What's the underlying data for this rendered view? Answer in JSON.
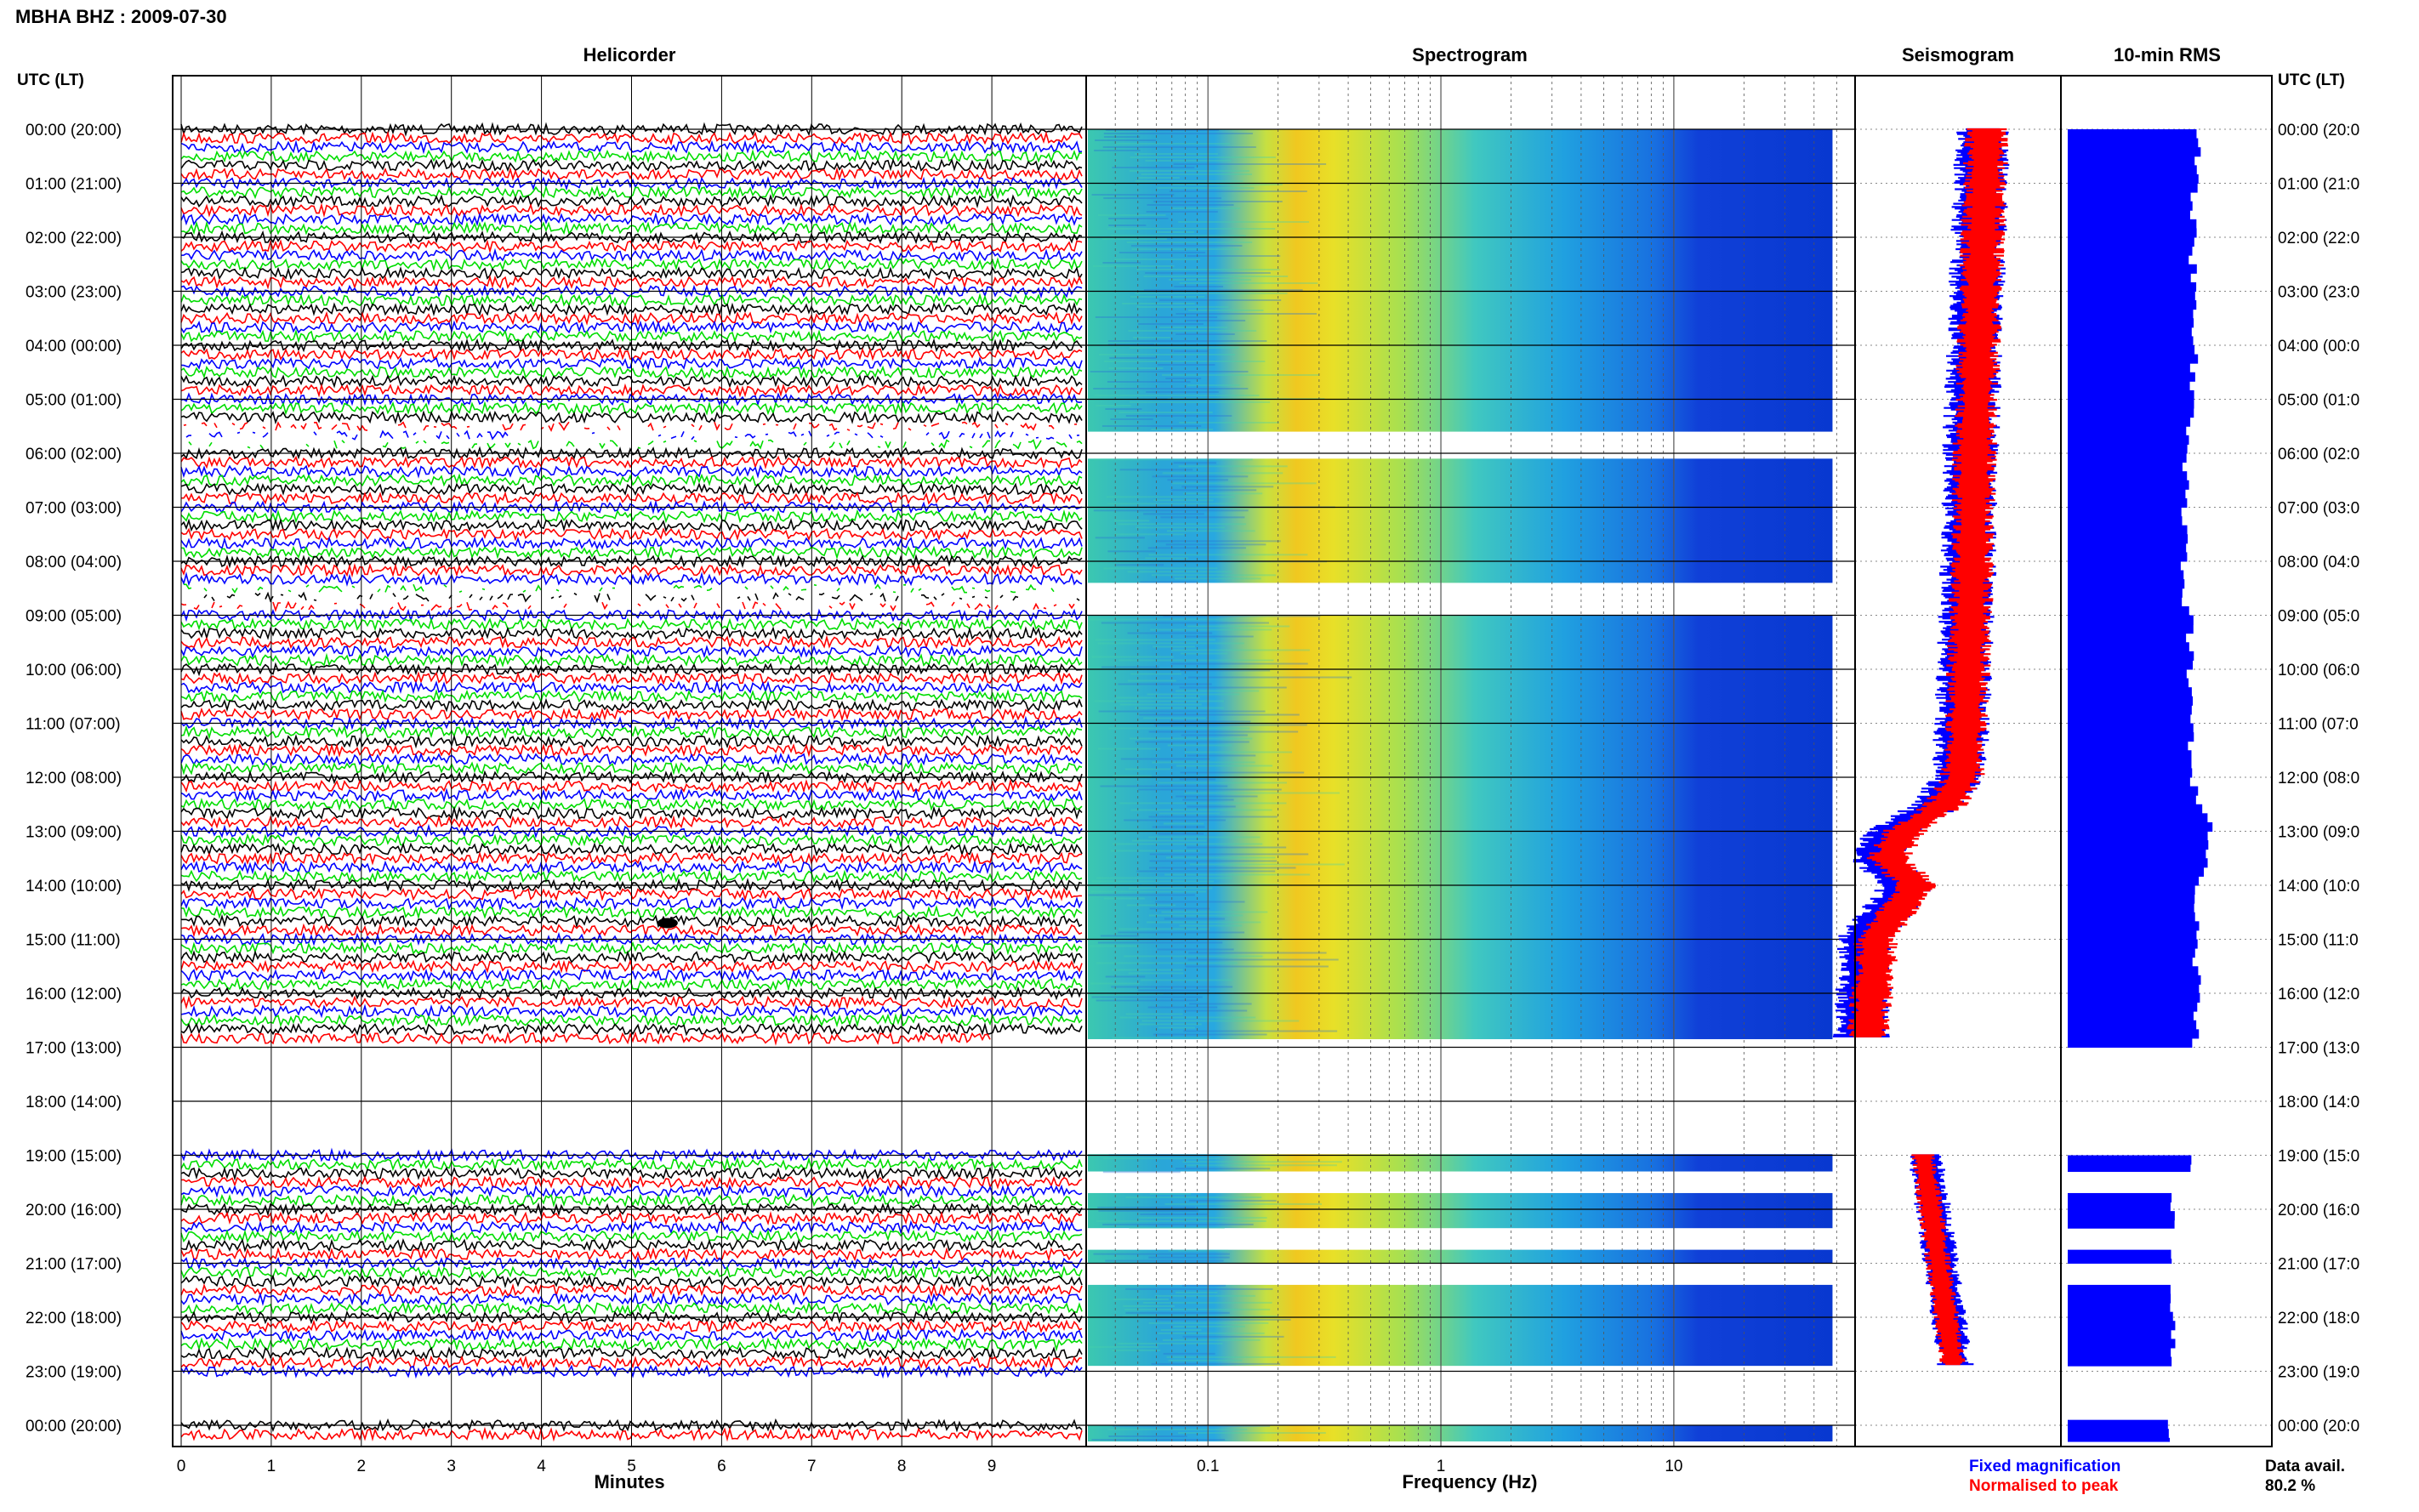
{
  "header": {
    "station_title": "MBHA BHZ : 2009-07-30"
  },
  "colors": {
    "trace_cycle": [
      "#000000",
      "#ff0000",
      "#0000ff",
      "#00dd00"
    ],
    "fixed": "#0000ff",
    "normalised": "#ff0000",
    "rms": "#0000ff"
  },
  "chart_data": [
    {
      "type": "line",
      "title": "Helicorder",
      "xlabel": "Minutes",
      "ylabel": "UTC (LT)",
      "x_ticks": [
        "0",
        "1",
        "2",
        "3",
        "4",
        "5",
        "6",
        "7",
        "8",
        "9"
      ],
      "xlim": [
        0,
        10
      ],
      "y_ticks": [
        "00:00 (20:00)",
        "01:00 (21:00)",
        "02:00 (22:00)",
        "03:00 (23:00)",
        "04:00 (00:00)",
        "05:00 (01:00)",
        "06:00 (02:00)",
        "07:00 (03:00)",
        "08:00 (04:00)",
        "09:00 (05:00)",
        "10:00 (06:00)",
        "11:00 (07:00)",
        "12:00 (08:00)",
        "13:00 (09:00)",
        "14:00 (10:00)",
        "15:00 (11:00)",
        "16:00 (12:00)",
        "17:00 (13:00)",
        "18:00 (14:00)",
        "19:00 (15:00)",
        "20:00 (16:00)",
        "21:00 (17:00)",
        "22:00 (18:00)",
        "23:00 (19:00)",
        "00:00 (20:00)"
      ],
      "right_y_ticks": [
        "00:00 (20:0",
        "01:00 (21:0",
        "02:00 (22:0",
        "03:00 (23:0",
        "04:00 (00:0",
        "05:00 (01:0",
        "06:00 (02:0",
        "07:00 (03:0",
        "08:00 (04:0",
        "09:00 (05:0",
        "10:00 (06:0",
        "11:00 (07:0",
        "12:00 (08:0",
        "13:00 (09:0",
        "14:00 (10:0",
        "15:00 (11:0",
        "16:00 (12:0",
        "17:00 (13:0",
        "18:00 (14:0",
        "19:00 (15:0",
        "20:00 (16:0",
        "21:00 (17:0",
        "22:00 (18:0",
        "23:00 (19:0",
        "00:00 (20:0"
      ],
      "right_ylabel": "UTC (LT)",
      "minutes_per_line": 10,
      "hours_with_data": [
        [
          0,
          16.9
        ],
        [
          19,
          23
        ],
        [
          24,
          24.2
        ]
      ],
      "dropout_hours": [
        [
          5.4,
          5.9
        ],
        [
          8.4,
          8.9
        ]
      ],
      "grid": true
    },
    {
      "type": "heatmap",
      "title": "Spectrogram",
      "xlabel": "Frequency (Hz)",
      "x_scale": "log",
      "x_ticks": [
        "0.1",
        "1",
        "10"
      ],
      "xlim": [
        0.03,
        60
      ],
      "colormap": "jet",
      "data_blocks_hours": [
        [
          0,
          5.6
        ],
        [
          6.1,
          8.4
        ],
        [
          9.0,
          16.85
        ],
        [
          18.98,
          19.3
        ],
        [
          19.7,
          20.35
        ],
        [
          20.75,
          21.0
        ],
        [
          21.4,
          22.9
        ],
        [
          24.0,
          24.3
        ]
      ],
      "grid": true
    },
    {
      "type": "line",
      "title": "Seismogram",
      "series": [
        {
          "name": "Fixed magnification",
          "hours": [
            0,
            2,
            4,
            6,
            8,
            10,
            11,
            12,
            12.5,
            13,
            13.5,
            14,
            14.5,
            15,
            15.5,
            16,
            16.8
          ],
          "values": [
            0.62,
            0.6,
            0.58,
            0.56,
            0.55,
            0.53,
            0.52,
            0.5,
            0.4,
            0.18,
            0.1,
            0.25,
            0.15,
            0.04,
            0.05,
            0.04,
            0.03
          ]
        },
        {
          "name": "Normalised to peak",
          "hours": [
            0,
            2,
            4,
            6,
            8,
            10,
            11,
            12,
            12.5,
            13,
            13.5,
            14,
            14.5,
            15,
            15.5,
            16,
            16.8
          ],
          "values": [
            0.64,
            0.62,
            0.6,
            0.58,
            0.57,
            0.55,
            0.54,
            0.52,
            0.44,
            0.24,
            0.16,
            0.3,
            0.2,
            0.1,
            0.1,
            0.08,
            0.06
          ]
        }
      ],
      "late_segment_hours": [
        19,
        23.8
      ],
      "grid": true
    },
    {
      "type": "bar",
      "title": "10-min RMS",
      "orientation": "horizontal",
      "bin_minutes": 10,
      "profile_hours": [
        0,
        2,
        4,
        5.5,
        6,
        8.5,
        9,
        12,
        12.5,
        13,
        13.5,
        14,
        15,
        16,
        16.9
      ],
      "profile_values": [
        0.62,
        0.59,
        0.6,
        0.58,
        0.56,
        0.55,
        0.58,
        0.58,
        0.65,
        0.68,
        0.66,
        0.62,
        0.6,
        0.62,
        0.6
      ],
      "late_blocks_hours": [
        [
          19.0,
          19.3
        ],
        [
          19.7,
          20.35
        ],
        [
          20.75,
          21.0
        ],
        [
          21.4,
          22.9
        ],
        [
          23.9,
          24.3
        ]
      ],
      "late_values": [
        0.58,
        0.5,
        0.5,
        0.5,
        0.47
      ],
      "grid": true
    }
  ],
  "legend": {
    "fixed_label": "Fixed magnification",
    "normalised_label": "Normalised to peak"
  },
  "footer": {
    "data_avail_label": "Data avail.",
    "data_avail_value": "80.2 %"
  }
}
